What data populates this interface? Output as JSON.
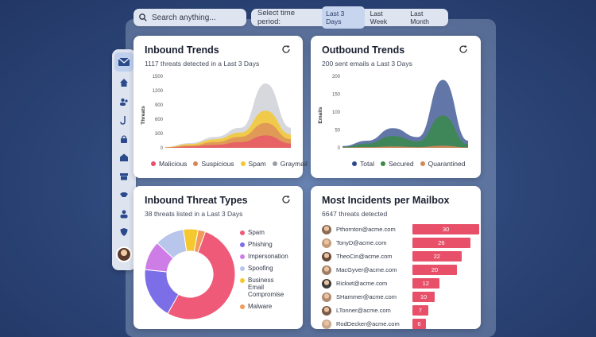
{
  "search": {
    "placeholder": "Search anything..."
  },
  "period": {
    "label": "Select time period:",
    "options": [
      "Last 3 Days",
      "Last Week",
      "Last Month"
    ],
    "active": "Last 3 Days"
  },
  "sidebar": {
    "icons": [
      "mail-shield-icon",
      "home-icon",
      "users-icon",
      "hook-icon",
      "lock-icon",
      "house-icon",
      "archive-icon",
      "handshake-icon",
      "user-icon",
      "shield-icon"
    ]
  },
  "inbound_trends": {
    "title": "Inbound Trends",
    "subtitle": "1117 threats detected in a Last 3 Days",
    "ylabel": "Threats",
    "yticks": [
      "1500",
      "1200",
      "900",
      "600",
      "300",
      "0"
    ],
    "legend": [
      {
        "name": "Malicious",
        "color": "#e8506a"
      },
      {
        "name": "Suspicious",
        "color": "#d4875a"
      },
      {
        "name": "Spam",
        "color": "#f5c830"
      },
      {
        "name": "Graymail",
        "color": "#9a9ea8"
      }
    ]
  },
  "outbound_trends": {
    "title": "Outbound Trends",
    "subtitle": "200 sent emails a Last 3 Days",
    "ylabel": "Emails",
    "yticks": [
      "200",
      "150",
      "100",
      "50",
      "0"
    ],
    "legend": [
      {
        "name": "Total",
        "color": "#2e4a8a"
      },
      {
        "name": "Secured",
        "color": "#3a8a4a"
      },
      {
        "name": "Quarantined",
        "color": "#d4875a"
      }
    ]
  },
  "threat_types": {
    "title": "Inbound Threat Types",
    "subtitle": "38 threats listed in a Last 3 Days",
    "legend": [
      {
        "name": "Spam",
        "color": "#ef5a78"
      },
      {
        "name": "Phishing",
        "color": "#7b6ee6"
      },
      {
        "name": "Impersonation",
        "color": "#cf7de6"
      },
      {
        "name": "Spoofing",
        "color": "#b7c6ea"
      },
      {
        "name": "Business Email Compromise",
        "color": "#f5c830"
      },
      {
        "name": "Malware",
        "color": "#f29a5a"
      }
    ]
  },
  "incidents": {
    "title": "Most Incidents per Mailbox",
    "subtitle": "6647 threats detected",
    "rows": [
      {
        "email": "Pthornton@acme.com",
        "count": "30"
      },
      {
        "email": "TonyD@acme.com",
        "count": "26"
      },
      {
        "email": "TheoCin@acme.com",
        "count": "22"
      },
      {
        "email": "MacGyver@acme.com",
        "count": "20"
      },
      {
        "email": "Rickwt@acme.com",
        "count": "12"
      },
      {
        "email": "SHammer@acme.com",
        "count": "10"
      },
      {
        "email": "LTonner@acme.com",
        "count": "7"
      },
      {
        "email": "RodDecker@acme.com",
        "count": "6"
      }
    ]
  },
  "chart_data": [
    {
      "type": "area",
      "title": "Inbound Trends",
      "ylabel": "Threats",
      "ylim": [
        0,
        1500
      ],
      "series": [
        {
          "name": "Graymail",
          "values": [
            20,
            100,
            230,
            420,
            1350,
            420
          ]
        },
        {
          "name": "Spam",
          "values": [
            15,
            80,
            180,
            320,
            780,
            280
          ]
        },
        {
          "name": "Suspicious",
          "values": [
            10,
            50,
            120,
            230,
            520,
            180
          ]
        },
        {
          "name": "Malicious",
          "values": [
            5,
            30,
            60,
            120,
            260,
            90
          ]
        }
      ]
    },
    {
      "type": "area",
      "title": "Outbound Trends",
      "ylabel": "Emails",
      "ylim": [
        0,
        200
      ],
      "series": [
        {
          "name": "Total",
          "values": [
            5,
            20,
            55,
            30,
            190,
            20
          ]
        },
        {
          "name": "Secured",
          "values": [
            3,
            12,
            33,
            18,
            90,
            10
          ]
        },
        {
          "name": "Quarantined",
          "values": [
            1,
            2,
            4,
            2,
            6,
            1
          ]
        }
      ]
    },
    {
      "type": "pie",
      "title": "Inbound Threat Types",
      "categories": [
        "Spam",
        "Phishing",
        "Impersonation",
        "Spoofing",
        "Business Email Compromise",
        "Malware"
      ],
      "values": [
        20,
        7,
        4,
        4,
        2,
        1
      ]
    },
    {
      "type": "bar",
      "title": "Most Incidents per Mailbox",
      "categories": [
        "Pthornton@acme.com",
        "TonyD@acme.com",
        "TheoCin@acme.com",
        "MacGyver@acme.com",
        "Rickwt@acme.com",
        "SHammer@acme.com",
        "LTonner@acme.com",
        "RodDecker@acme.com"
      ],
      "values": [
        30,
        26,
        22,
        20,
        12,
        10,
        7,
        6
      ],
      "xlim": [
        0,
        30
      ]
    }
  ]
}
